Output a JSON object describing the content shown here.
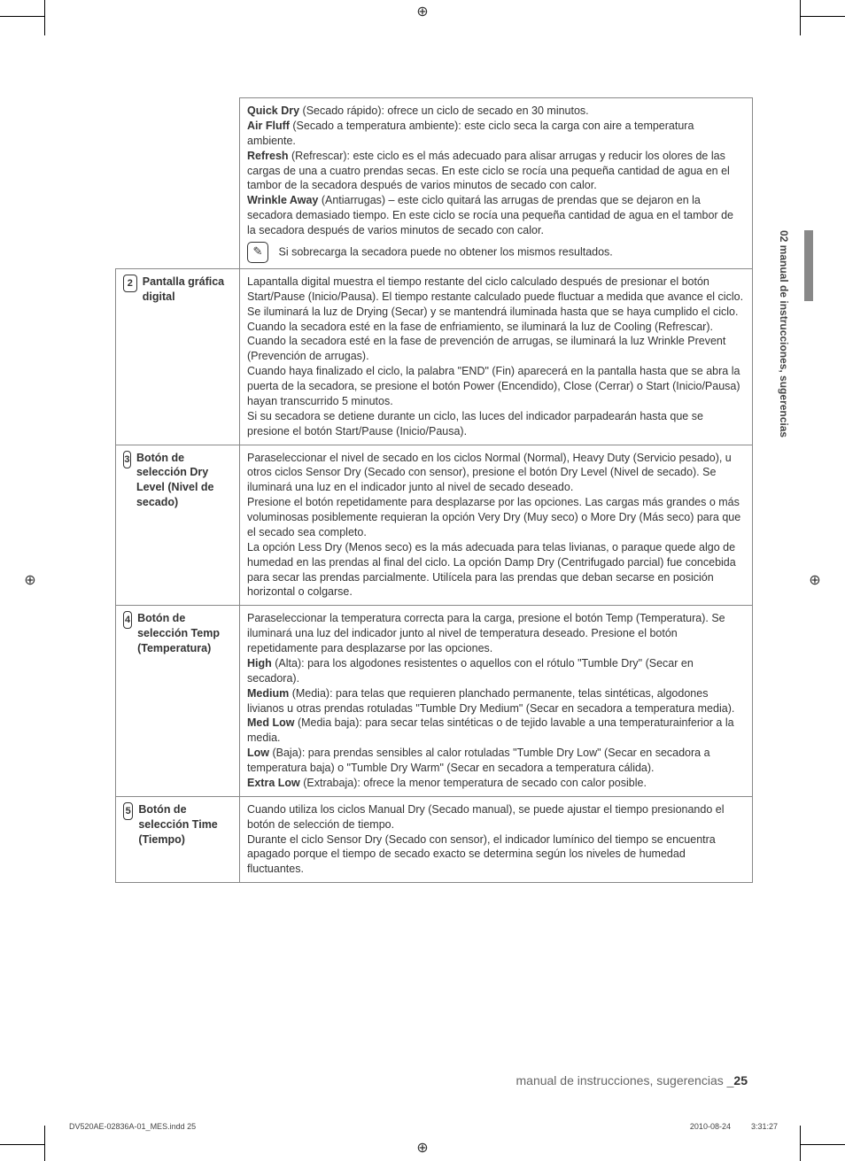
{
  "meta": {
    "side_tab": "02 manual de instrucciones, sugerencias",
    "footer_text": "manual de instrucciones, sugerencias _",
    "page_number": "25",
    "imprint_left": "DV520AE-02836A-01_MES.indd   25",
    "imprint_right": "2010-08-24      3:31:27"
  },
  "colors": {
    "text": "#333333",
    "border": "#888888",
    "side_bar": "#888888",
    "footer_grey": "#666666",
    "background": "#ffffff"
  },
  "typography": {
    "body_font": "Arial",
    "body_size_pt": 9,
    "label_weight": "bold"
  },
  "table": {
    "rows": [
      {
        "number": "",
        "label": "",
        "content": {
          "parts": [
            {
              "b": "Quick Dry",
              "t": " (Secado rápido): ofrece un ciclo de secado en 30 minutos."
            },
            {
              "b": "Air Fluff",
              "t": " (Secado a temperatura ambiente): este ciclo seca la carga con aire a temperatura ambiente."
            },
            {
              "b": "Refresh",
              "t": " (Refrescar): este ciclo es el más adecuado para alisar arrugas y reducir los olores de las cargas de una a cuatro prendas secas. En este ciclo se rocía una pequeña cantidad de agua en el tambor de la secadora después de varios minutos de secado con calor."
            },
            {
              "b": "Wrinkle Away",
              "t": " (Antiarrugas) – este ciclo quitará las arrugas de prendas que se dejaron en la secadora demasiado tiempo. En este ciclo se rocía una pequeña cantidad de agua en el tambor de la secadora después de varios minutos de secado con calor."
            }
          ],
          "note_icon": "✎",
          "note": "Si sobrecarga la secadora puede no obtener los mismos resultados."
        }
      },
      {
        "number": "2",
        "label": "Pantalla gráfica digital",
        "content": {
          "paras": [
            "Lapantalla digital muestra el tiempo restante del ciclo calculado después de presionar el botón Start/Pause (Inicio/Pausa). El tiempo restante calculado puede fluctuar a medida que avance el ciclo.",
            "Se iluminará la luz de Drying (Secar) y se mantendrá iluminada hasta que se haya cumplido el ciclo.",
            "Cuando la secadora esté en la fase de enfriamiento, se iluminará la luz de Cooling (Refrescar).",
            "Cuando la secadora esté en la fase de prevención de arrugas, se iluminará la luz Wrinkle Prevent (Prevención de arrugas).",
            "Cuando haya finalizado el ciclo, la palabra \"END\" (Fin) aparecerá en la pantalla hasta que se abra la puerta de la secadora, se presione el botón Power (Encendido), Close (Cerrar) o Start (Inicio/Pausa)  hayan transcurrido 5 minutos.",
            "Si su secadora se detiene durante un ciclo, las luces del indicador parpadearán hasta que se presione el botón Start/Pause (Inicio/Pausa)."
          ]
        }
      },
      {
        "number": "3",
        "label": "Botón de selección Dry Level (Nivel de secado)",
        "content": {
          "paras": [
            "Paraseleccionar el nivel de secado en los ciclos Normal (Normal), Heavy Duty (Servicio pesado), u otros ciclos Sensor Dry (Secado con sensor), presione el botón Dry Level (Nivel de secado). Se iluminará una luz en el indicador junto al nivel de secado deseado.",
            "Presione el botón repetidamente para desplazarse por las opciones. Las cargas más grandes o más voluminosas posiblemente requieran la opción Very Dry (Muy seco) o More Dry (Más seco) para que el secado sea completo.",
            "La opción Less Dry (Menos seco) es la más adecuada para telas livianas, o paraque quede algo de humedad en las prendas al final del ciclo. La opción Damp Dry (Centrifugado parcial) fue concebida para secar las prendas parcialmente. Utilícela para las prendas que deban secarse en posición horizontal o colgarse."
          ]
        }
      },
      {
        "number": "4",
        "label": "Botón de selección Temp (Temperatura)",
        "content": {
          "parts": [
            {
              "t": "Paraseleccionar la temperatura correcta para la carga, presione el botón Temp (Temperatura). Se iluminará una luz del indicador junto al nivel de temperatura deseado. Presione el botón repetidamente para desplazarse por las opciones."
            },
            {
              "b": "High",
              "t": " (Alta): para los algodones resistentes o aquellos con el rótulo \"Tumble Dry\" (Secar en secadora)."
            },
            {
              "b": "Medium",
              "t": " (Media): para telas que requieren planchado permanente, telas sintéticas, algodones livianos u otras prendas rotuladas \"Tumble Dry Medium\" (Secar en secadora a temperatura media)."
            },
            {
              "b": "Med Low",
              "t": " (Media baja): para secar telas sintéticas o de tejido lavable a una temperaturainferior a la media."
            },
            {
              "b": "Low",
              "t": " (Baja): para prendas sensibles al calor rotuladas \"Tumble Dry Low\" (Secar en secadora a temperatura baja) o \"Tumble Dry Warm\" (Secar en secadora a temperatura cálida)."
            },
            {
              "b": "Extra Low",
              "t": " (Extrabaja): ofrece la menor temperatura de secado con calor posible."
            }
          ]
        }
      },
      {
        "number": "5",
        "label": "Botón de selección Time (Tiempo)",
        "content": {
          "paras": [
            "Cuando utiliza los ciclos Manual Dry (Secado manual), se puede ajustar el tiempo presionando el botón de selección de tiempo.",
            "Durante el ciclo Sensor Dry (Secado con sensor), el indicador lumínico del tiempo se encuentra apagado porque el tiempo de secado exacto se determina según los niveles de humedad fluctuantes."
          ]
        }
      }
    ]
  }
}
